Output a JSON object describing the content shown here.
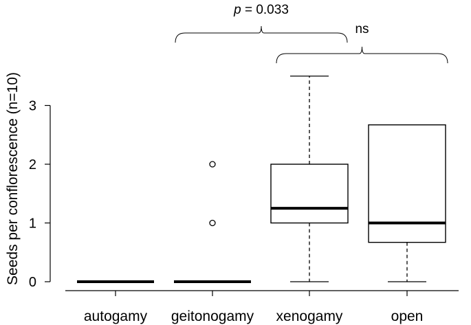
{
  "chart_data": {
    "type": "box",
    "ylabel": "Seeds per conflorescence (n=10)",
    "xlabel": "",
    "ylim": [
      0,
      3.5
    ],
    "yticks": [
      0,
      1,
      2,
      3
    ],
    "ytick_labels": [
      "0",
      "1",
      "2",
      "3"
    ],
    "categories": [
      "autogamy",
      "geitonogamy",
      "xenogamy",
      "open"
    ],
    "boxes": [
      {
        "category": "autogamy",
        "min": 0,
        "q1": 0,
        "median": 0,
        "q3": 0,
        "max": 0,
        "outliers": []
      },
      {
        "category": "geitonogamy",
        "min": 0,
        "q1": 0,
        "median": 0,
        "q3": 0,
        "max": 0,
        "outliers": [
          1,
          2
        ]
      },
      {
        "category": "xenogamy",
        "min": 0,
        "q1": 1,
        "median": 1.25,
        "q3": 2,
        "max": 3.5,
        "outliers": []
      },
      {
        "category": "open",
        "min": 0,
        "q1": 0.67,
        "median": 1,
        "q3": 2.67,
        "max": 2.67,
        "outliers": []
      }
    ],
    "annotations": [
      {
        "label_prefix": "p",
        "label_suffix": " = 0.033",
        "from": "geitonogamy",
        "to": "xenogamy"
      },
      {
        "label": "ns",
        "from": "xenogamy",
        "to": "open"
      }
    ]
  }
}
